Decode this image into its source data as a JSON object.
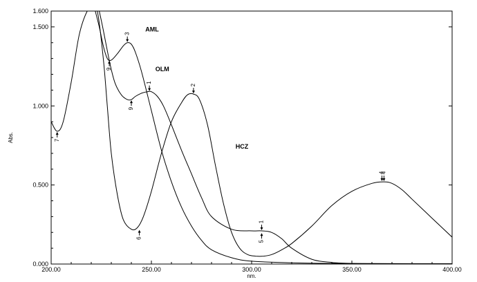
{
  "chart_data": {
    "type": "line",
    "title": "",
    "xlabel": "nm.",
    "ylabel": "Abs.",
    "xlim": [
      200,
      400
    ],
    "ylim": [
      0,
      1.6
    ],
    "x_ticks": [
      200,
      250,
      300,
      350,
      400
    ],
    "x_tick_labels": [
      "200.00",
      "250.00",
      "300.00",
      "350.00",
      "400.00"
    ],
    "y_ticks": [
      0,
      0.5,
      1.0,
      1.5,
      1.6
    ],
    "y_tick_labels": [
      "0.000",
      "0.500",
      "1.000",
      "1.500",
      "1.600"
    ],
    "grid": false,
    "series": [
      {
        "name": "AML",
        "x": [
          222,
          224,
          226,
          228,
          230,
          233,
          236,
          238,
          240,
          242,
          245,
          250,
          255,
          260,
          265,
          270,
          275,
          280,
          290,
          300,
          320,
          340,
          360,
          380,
          400
        ],
        "y": [
          1.6,
          1.5,
          1.38,
          1.3,
          1.29,
          1.33,
          1.38,
          1.4,
          1.39,
          1.34,
          1.22,
          0.97,
          0.72,
          0.52,
          0.36,
          0.24,
          0.15,
          0.09,
          0.04,
          0.018,
          0.008,
          0.004,
          0.003,
          0.002,
          0.002
        ]
      },
      {
        "name": "OLM",
        "x": [
          224,
          226,
          228,
          230,
          232,
          235,
          238,
          240,
          242,
          245,
          248,
          250,
          253,
          256,
          260,
          265,
          270,
          275,
          280,
          290,
          300,
          305,
          310,
          315,
          320,
          330,
          340,
          350,
          360,
          380,
          400
        ],
        "y": [
          1.6,
          1.48,
          1.35,
          1.23,
          1.14,
          1.07,
          1.04,
          1.04,
          1.06,
          1.08,
          1.09,
          1.09,
          1.06,
          1.0,
          0.88,
          0.72,
          0.57,
          0.42,
          0.3,
          0.22,
          0.21,
          0.21,
          0.2,
          0.16,
          0.1,
          0.03,
          0.01,
          0.004,
          0.002,
          0.001,
          0.001
        ]
      },
      {
        "name": "HCZ",
        "x": [
          200,
          203,
          206,
          210,
          214,
          218,
          220,
          223,
          226,
          228,
          230,
          233,
          236,
          240,
          243,
          246,
          250,
          255,
          260,
          265,
          268,
          271,
          274,
          278,
          282,
          286,
          290,
          294,
          298,
          302,
          306,
          310,
          315,
          320,
          330,
          340,
          350,
          360,
          366,
          370,
          375,
          380,
          390,
          400
        ],
        "y": [
          0.9,
          0.84,
          0.9,
          1.15,
          1.45,
          1.6,
          1.6,
          1.6,
          1.3,
          1.0,
          0.7,
          0.44,
          0.28,
          0.22,
          0.23,
          0.3,
          0.46,
          0.7,
          0.9,
          1.02,
          1.07,
          1.075,
          1.04,
          0.88,
          0.62,
          0.38,
          0.2,
          0.1,
          0.06,
          0.05,
          0.05,
          0.06,
          0.09,
          0.13,
          0.24,
          0.37,
          0.46,
          0.51,
          0.52,
          0.51,
          0.47,
          0.41,
          0.29,
          0.17
        ]
      }
    ],
    "series_labels": [
      {
        "text": "AML",
        "x": 247,
        "y": 1.47
      },
      {
        "text": "OLM",
        "x": 252,
        "y": 1.22
      },
      {
        "text": "HCZ",
        "x": 292,
        "y": 0.73
      }
    ],
    "peak_markers": [
      {
        "label": "3",
        "x": 238,
        "y": 1.4,
        "dir": "up"
      },
      {
        "label": "9",
        "x": 229,
        "y": 1.29,
        "dir": "down"
      },
      {
        "label": "1",
        "x": 249,
        "y": 1.09,
        "dir": "up"
      },
      {
        "label": "9",
        "x": 240,
        "y": 1.04,
        "dir": "down"
      },
      {
        "label": "2",
        "x": 271,
        "y": 1.075,
        "dir": "up"
      },
      {
        "label": "7",
        "x": 203,
        "y": 0.84,
        "dir": "down"
      },
      {
        "label": "6",
        "x": 244,
        "y": 0.22,
        "dir": "down"
      },
      {
        "label": "1",
        "x": 305,
        "y": 0.21,
        "dir": "up"
      },
      {
        "label": "5",
        "x": 305,
        "y": 0.2,
        "dir": "down"
      },
      {
        "label": "4",
        "x": 366,
        "y": 0.52,
        "dir": "up"
      },
      {
        "label": "4",
        "x": 365,
        "y": 0.52,
        "dir": "up"
      }
    ]
  }
}
